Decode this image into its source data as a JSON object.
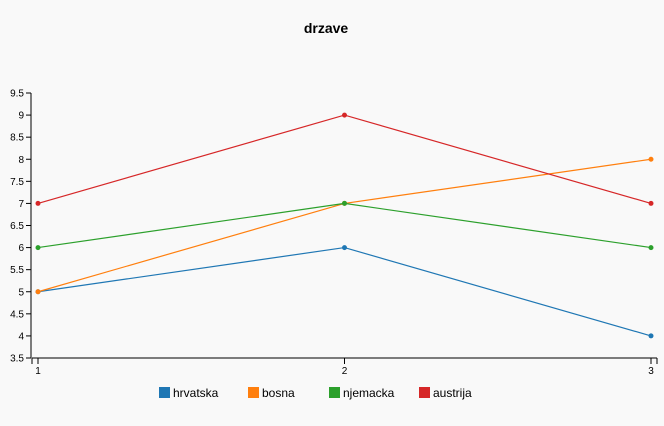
{
  "chart_data": {
    "type": "line",
    "title": "drzave",
    "x": [
      1,
      2,
      3
    ],
    "xlim": [
      1,
      3
    ],
    "ylim": [
      3.5,
      9.5
    ],
    "yticks": [
      3.5,
      4,
      4.5,
      5,
      5.5,
      6,
      6.5,
      7,
      7.5,
      8,
      8.5,
      9,
      9.5
    ],
    "xticks": [
      1,
      2,
      3
    ],
    "grid": false,
    "legend_position": "bottom",
    "series": [
      {
        "name": "hrvatska",
        "color": "#1f77b4",
        "values": [
          5,
          6,
          4
        ]
      },
      {
        "name": "bosna",
        "color": "#ff7f0e",
        "values": [
          5,
          7,
          8
        ]
      },
      {
        "name": "njemacka",
        "color": "#2ca02c",
        "values": [
          6,
          7,
          6
        ]
      },
      {
        "name": "austrija",
        "color": "#d62728",
        "values": [
          7,
          9,
          7
        ]
      }
    ]
  }
}
